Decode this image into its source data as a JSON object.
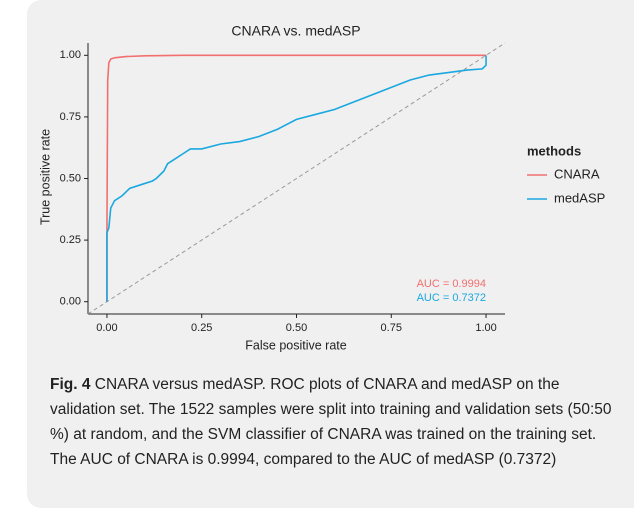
{
  "chart_data": {
    "type": "line",
    "title": "CNARA vs. medASP",
    "x_label": "False positive rate",
    "y_label": "True positive rate",
    "xlim": [
      -0.05,
      1.05
    ],
    "ylim": [
      -0.05,
      1.05
    ],
    "xticks": [
      {
        "value": 0,
        "label": "0.00"
      },
      {
        "value": 0.25,
        "label": "0.25"
      },
      {
        "value": 0.5,
        "label": "0.50"
      },
      {
        "value": 0.75,
        "label": "0.75"
      },
      {
        "value": 1,
        "label": "1.00"
      }
    ],
    "yticks": [
      {
        "value": 0,
        "label": "0.00"
      },
      {
        "value": 0.25,
        "label": "0.25"
      },
      {
        "value": 0.5,
        "label": "0.50"
      },
      {
        "value": 0.75,
        "label": "0.75"
      },
      {
        "value": 1,
        "label": "1.00"
      }
    ],
    "legend_title": "methods",
    "series": [
      {
        "name": "CNARA",
        "color": "#f07070",
        "x": [
          0,
          0,
          0.002,
          0.005,
          0.01,
          0.02,
          0.05,
          0.1,
          0.2,
          1,
          1
        ],
        "values": [
          0,
          0.3,
          0.9,
          0.97,
          0.985,
          0.99,
          0.995,
          0.998,
          1,
          1,
          1
        ]
      },
      {
        "name": "medASP",
        "color": "#1aa8e0",
        "x": [
          0,
          0,
          0.005,
          0.01,
          0.02,
          0.04,
          0.06,
          0.1,
          0.12,
          0.13,
          0.15,
          0.16,
          0.18,
          0.2,
          0.22,
          0.25,
          0.3,
          0.35,
          0.4,
          0.45,
          0.5,
          0.55,
          0.6,
          0.65,
          0.7,
          0.75,
          0.8,
          0.85,
          0.9,
          0.95,
          0.99,
          1,
          1
        ],
        "values": [
          0,
          0.28,
          0.3,
          0.38,
          0.41,
          0.43,
          0.46,
          0.48,
          0.49,
          0.5,
          0.53,
          0.56,
          0.58,
          0.6,
          0.62,
          0.62,
          0.64,
          0.65,
          0.67,
          0.7,
          0.74,
          0.76,
          0.78,
          0.81,
          0.84,
          0.87,
          0.9,
          0.92,
          0.93,
          0.94,
          0.945,
          0.96,
          1
        ]
      }
    ],
    "annotations": [
      {
        "text": "AUC = 0.9994",
        "color": "#f07070"
      },
      {
        "text": "AUC = 0.7372",
        "color": "#1aa8e0"
      }
    ]
  },
  "caption": {
    "label": "Fig. 4",
    "text": "CNARA versus medASP. ROC plots of CNARA and medASP on the validation set. The 1522 samples were split into training and validation sets (50:50 %) at random, and the SVM classifier of CNARA was trained on the training set. The AUC of CNARA is 0.9994, compared to the AUC of medASP (0.7372)"
  }
}
